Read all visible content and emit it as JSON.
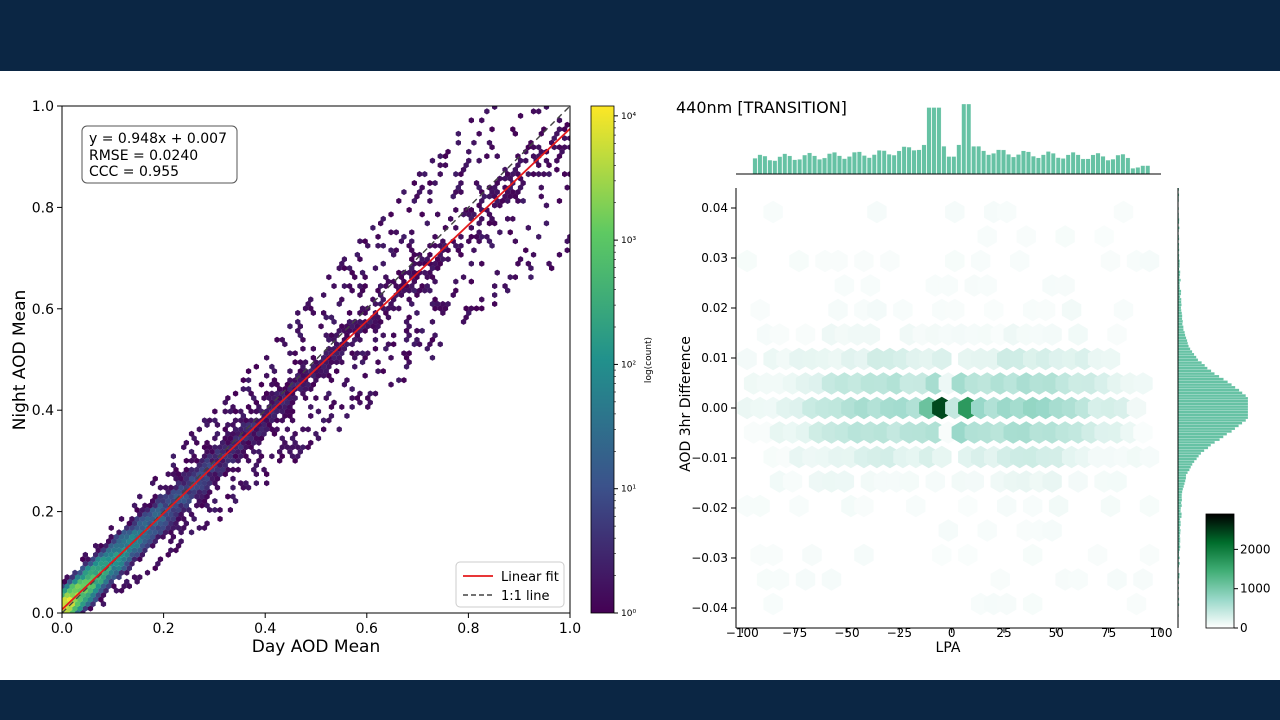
{
  "chart_data": [
    {
      "type": "hexbin",
      "title": "",
      "xlabel": "Day AOD Mean",
      "ylabel": "Night AOD Mean",
      "xlim": [
        0,
        1
      ],
      "ylim": [
        0,
        1
      ],
      "xticks": [
        "0.0",
        "0.2",
        "0.4",
        "0.6",
        "0.8",
        "1.0"
      ],
      "yticks": [
        "0.0",
        "0.2",
        "0.4",
        "0.6",
        "0.8",
        "1.0"
      ],
      "fit": {
        "slope": 0.948,
        "intercept": 0.007
      },
      "stats_lines": [
        "y = 0.948x + 0.007",
        "RMSE = 0.0240",
        "CCC = 0.955"
      ],
      "legend": {
        "placement": "lower-right",
        "entries": [
          "Linear fit",
          "1:1 line"
        ]
      },
      "legend_colors": [
        "#e41a1c",
        "#444444"
      ],
      "colorbar": {
        "label": "log(count)",
        "scale": "log",
        "range": [
          1,
          12000
        ],
        "ticks": [
          "10⁰",
          "10¹",
          "10²",
          "10³",
          "10⁴"
        ],
        "colormap": [
          "#440154",
          "#3b528b",
          "#21918c",
          "#5ec962",
          "#fde725"
        ]
      }
    },
    {
      "type": "hexbin",
      "title": "440nm [TRANSITION]",
      "xlabel": "LPA",
      "ylabel": "AOD 3hr Difference",
      "xlim": [
        -103,
        100
      ],
      "ylim": [
        -0.044,
        0.044
      ],
      "xticks": [
        "−100",
        "−75",
        "−50",
        "−25",
        "0",
        "25",
        "50",
        "75",
        "100"
      ],
      "yticks": [
        "0.04",
        "0.03",
        "0.02",
        "0.01",
        "0.00",
        "−0.01",
        "−0.02",
        "−0.03",
        "−0.04"
      ],
      "hist_color": "#66c2a4",
      "colorbar": {
        "scale": "linear",
        "range": [
          0,
          2900
        ],
        "ticks": [
          "2000",
          "1000",
          "0"
        ],
        "colormap": [
          "#ffffff",
          "#99d8c9",
          "#41ae76",
          "#006d2c",
          "#000000"
        ]
      }
    }
  ]
}
